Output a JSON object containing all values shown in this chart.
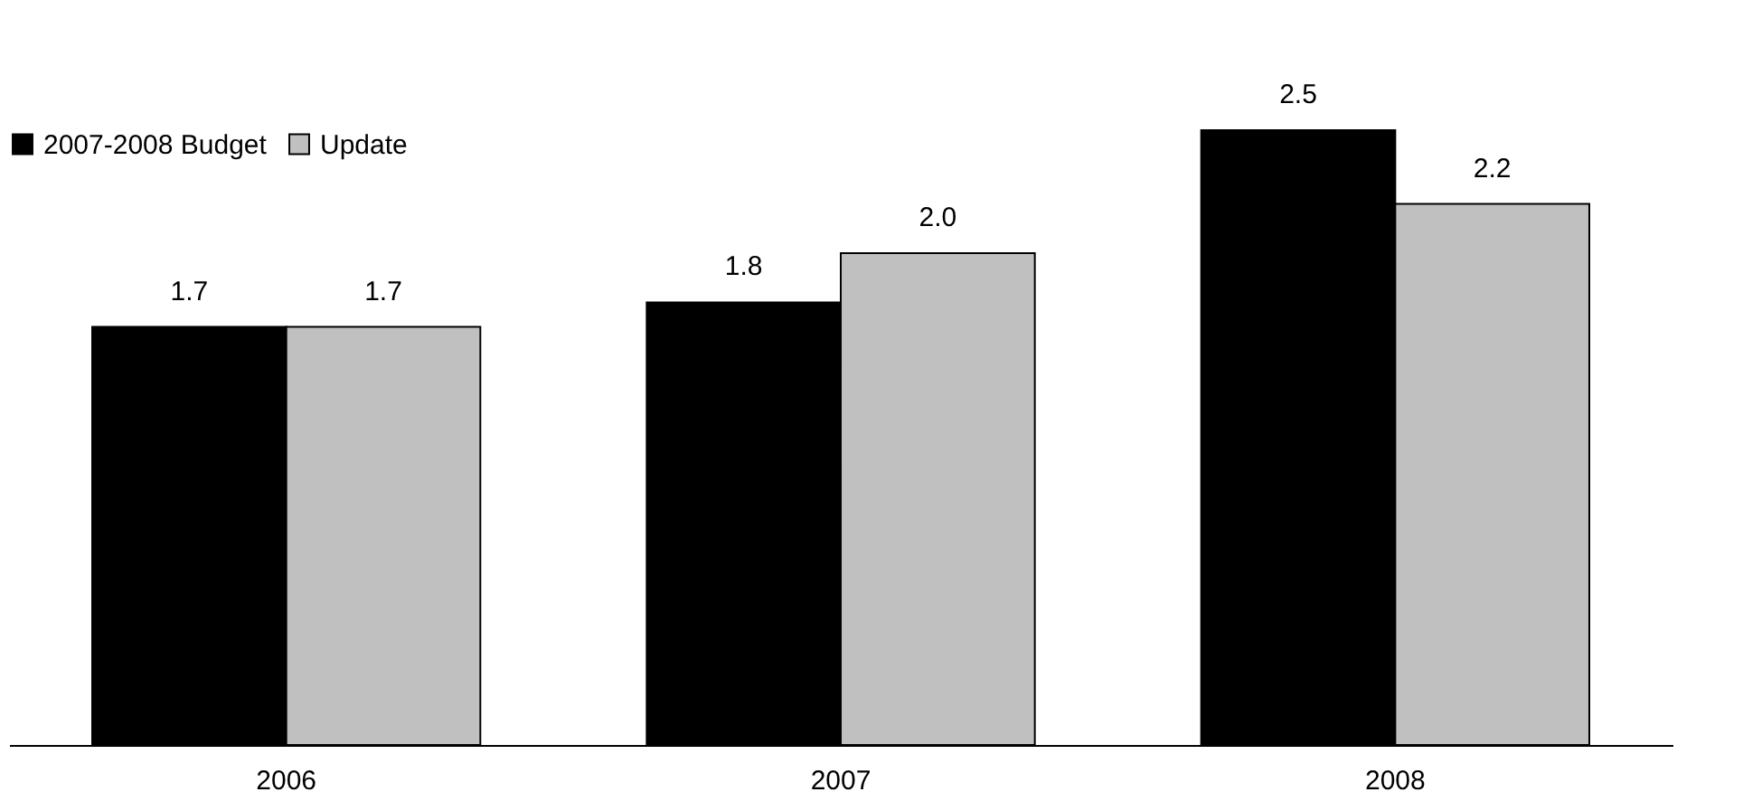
{
  "chart_data": {
    "type": "bar",
    "categories": [
      "2006",
      "2007",
      "2008"
    ],
    "series": [
      {
        "name": "2007-2008 Budget",
        "color": "#000000",
        "values": [
          1.7,
          1.8,
          2.5
        ],
        "value_labels": [
          "1.7",
          "1.8",
          "2.5"
        ]
      },
      {
        "name": "Update",
        "color": "#c0c0c0",
        "values": [
          1.7,
          2.0,
          2.2
        ],
        "value_labels": [
          "1.7",
          "2.0",
          "2.2"
        ]
      }
    ],
    "legend": "top left",
    "grid": false
  }
}
